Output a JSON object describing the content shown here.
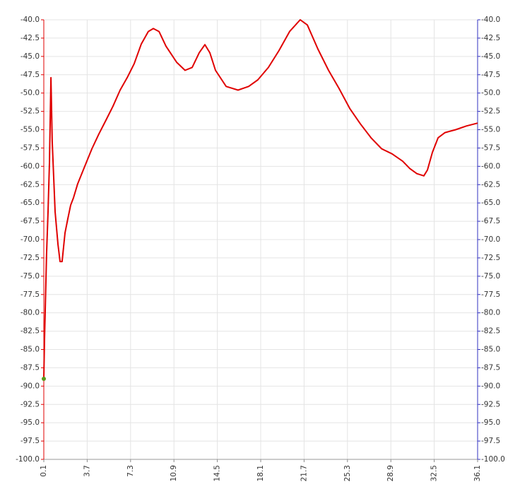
{
  "chart_data": {
    "type": "line",
    "x": [
      0.1,
      0.16,
      0.22,
      0.33,
      0.45,
      0.57,
      0.69,
      0.8,
      1.04,
      1.27,
      1.45,
      1.62,
      1.86,
      2.09,
      2.33,
      2.56,
      2.91,
      3.5,
      4.09,
      4.67,
      5.26,
      5.84,
      6.43,
      7.02,
      7.6,
      8.19,
      8.77,
      9.19,
      9.66,
      10.24,
      11.12,
      11.82,
      12.41,
      13.0,
      13.47,
      13.88,
      14.35,
      15.23,
      16.22,
      17.1,
      17.86,
      18.74,
      19.62,
      20.5,
      21.38,
      21.97,
      22.85,
      23.73,
      24.61,
      25.49,
      26.37,
      27.25,
      28.13,
      29.0,
      29.88,
      30.47,
      31.06,
      31.64,
      31.94,
      32.35,
      32.82,
      33.4,
      34.28,
      35.16,
      36.1
    ],
    "series": [
      {
        "color": "#e00000",
        "values": [
          -88.9,
          -83.6,
          -79.7,
          -72,
          -66.2,
          -59.5,
          -47.9,
          -56.6,
          -66.2,
          -70.6,
          -73,
          -73,
          -69.1,
          -67.2,
          -65.3,
          -64.3,
          -62.4,
          -60,
          -57.6,
          -55.6,
          -53.7,
          -51.8,
          -49.6,
          -47.9,
          -46,
          -43.3,
          -41.6,
          -41.2,
          -41.6,
          -43.6,
          -45.8,
          -46.9,
          -46.5,
          -44.5,
          -43.4,
          -44.5,
          -46.9,
          -49.1,
          -49.6,
          -49.1,
          -48.2,
          -46.5,
          -44.2,
          -41.6,
          -40,
          -40.7,
          -44,
          -46.9,
          -49.4,
          -52.1,
          -54.2,
          -56.1,
          -57.6,
          -58.3,
          -59.3,
          -60.3,
          -61,
          -61.3,
          -60.5,
          -58.1,
          -56.1,
          -55.4,
          -55,
          -54.5,
          -54.1
        ]
      }
    ],
    "points": [
      {
        "x": 0.1,
        "y": -89,
        "color": "#5a9a1a"
      }
    ],
    "xlim": [
      0.1,
      36.1
    ],
    "xticks": [
      0.1,
      3.7,
      7.3,
      10.9,
      14.5,
      18.1,
      21.7,
      25.3,
      28.9,
      32.5,
      36.1
    ],
    "ylim": [
      -100,
      -40
    ],
    "yticks": [
      {
        "value": -40,
        "label": "-40.0"
      },
      -42.5,
      {
        "value": -45,
        "label": "-45.0"
      },
      -47.5,
      {
        "value": -50,
        "label": "-50.0"
      },
      -52.5,
      {
        "value": -55,
        "label": "-55.0"
      },
      -57.5,
      {
        "value": -60,
        "label": "-60.0"
      },
      -62.5,
      {
        "value": -65,
        "label": "-65.0"
      },
      -67.5,
      {
        "value": -70,
        "label": "-70.0"
      },
      -72.5,
      {
        "value": -75,
        "label": "-75.0"
      },
      -77.5,
      {
        "value": -80,
        "label": "-80.0"
      },
      -82.5,
      {
        "value": -85,
        "label": "-85.0"
      },
      -87.5,
      {
        "value": -90,
        "label": "-90.0"
      },
      -92.5,
      {
        "value": -95,
        "label": "-95.0"
      },
      -97.5,
      {
        "value": -100,
        "label": "-100.0"
      }
    ],
    "y2lim": [
      -100,
      -40
    ],
    "y2ticks": [
      {
        "value": -40,
        "label": "-40.0"
      },
      -42.5,
      {
        "value": -45,
        "label": "-45.0"
      },
      -47.5,
      {
        "value": -50,
        "label": "-50.0"
      },
      -52.5,
      {
        "value": -55,
        "label": "-55.0"
      },
      -57.5,
      {
        "value": -60,
        "label": "-60.0"
      },
      -62.5,
      {
        "value": -65,
        "label": "-65.0"
      },
      -67.5,
      {
        "value": -70,
        "label": "-70.0"
      },
      -72.5,
      {
        "value": -75,
        "label": "-75.0"
      },
      -77.5,
      {
        "value": -80,
        "label": "-80.0"
      },
      -82.5,
      {
        "value": -85,
        "label": "-85.0"
      },
      -87.5,
      {
        "value": -90,
        "label": "-90.0"
      },
      -92.5,
      {
        "value": -95,
        "label": "-95.0"
      },
      -97.5,
      {
        "value": -100,
        "label": "-100.0"
      }
    ],
    "grid": true,
    "y_axis_color": "#e00000",
    "y2_axis_color": "#3030c0"
  }
}
